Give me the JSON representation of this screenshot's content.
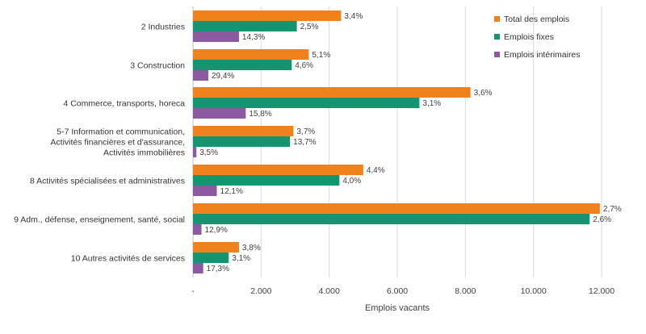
{
  "chart_data": {
    "type": "bar",
    "orientation": "horizontal",
    "categories": [
      [
        "2 Industries"
      ],
      [
        "3 Construction"
      ],
      [
        "4 Commerce, transports, horeca"
      ],
      [
        "5-7 Information et communication,",
        "Activités financières et d'assurance,",
        "Activités immobilières"
      ],
      [
        "8 Activités spécialisées et administratives"
      ],
      [
        "9 Adm., défense, enseignement, santé, social"
      ],
      [
        "10 Autres activités de services"
      ]
    ],
    "series": [
      {
        "name": "Total des emplois",
        "color": "#f0821e",
        "values": [
          4350,
          3400,
          8150,
          2950,
          5000,
          11950,
          1350
        ],
        "labels": [
          "3,4%",
          "5,1%",
          "3,6%",
          "3,7%",
          "4,4%",
          "2,7%",
          "3,8%"
        ]
      },
      {
        "name": "Emplois fixes",
        "color": "#149470",
        "values": [
          3050,
          2900,
          6650,
          2850,
          4300,
          11650,
          1050
        ],
        "labels": [
          "2,5%",
          "4,6%",
          "3,1%",
          "13,7%",
          "4,0%",
          "2,6%",
          "3,1%"
        ]
      },
      {
        "name": "Emplois intérimaires",
        "color": "#8c5aa0",
        "values": [
          1350,
          450,
          1550,
          100,
          700,
          250,
          300
        ],
        "labels": [
          "14,3%",
          "29,4%",
          "15,8%",
          "3,5%",
          "12,1%",
          "12,9%",
          "17,3%"
        ]
      }
    ],
    "xlabel": "Emplois vacants",
    "xlim": [
      0,
      12000
    ],
    "xticks": [
      0,
      2000,
      4000,
      6000,
      8000,
      10000,
      12000
    ],
    "xtick_labels": [
      "-",
      "2.000",
      "4.000",
      "6.000",
      "8.000",
      "10.000",
      "12.000"
    ],
    "grid": "vertical",
    "legend": "top-right"
  }
}
